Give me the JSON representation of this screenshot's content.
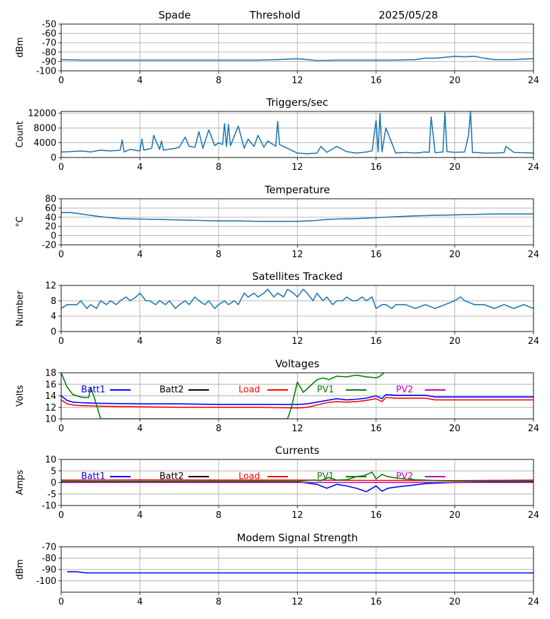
{
  "header": {
    "site": "Spade",
    "mode": "Threshold",
    "date": "2025/05/28"
  },
  "colors": {
    "default_series": "#1f77b4",
    "batt1": "#0000ff",
    "batt2": "#000000",
    "load": "#ff0000",
    "pv1": "#008000",
    "pv2": "#bf00bf",
    "grid": "#b0b0b0"
  },
  "x_ticks": [
    "0",
    "4",
    "8",
    "12",
    "16",
    "20",
    "24"
  ],
  "chart_data": [
    {
      "type": "line",
      "title": "",
      "ylabel": "dBm",
      "ylim": [
        -100,
        -50
      ],
      "yticks": [
        "-50",
        "-60",
        "-70",
        "-80",
        "-90",
        "-100"
      ],
      "xlim": [
        0,
        24
      ],
      "grid": true,
      "series": [
        {
          "color": "#1f77b4",
          "x": [
            0,
            1,
            2,
            3,
            4,
            5,
            6,
            7,
            8,
            9,
            10,
            11,
            12,
            12.5,
            13,
            14,
            15,
            16,
            17,
            18,
            18.5,
            19,
            19.5,
            20,
            20.5,
            21,
            21.5,
            22,
            23,
            24
          ],
          "y": [
            -88,
            -88.5,
            -88.5,
            -88.5,
            -88.5,
            -88.5,
            -88.5,
            -88.5,
            -88.5,
            -88.5,
            -88.5,
            -88,
            -87,
            -88,
            -89,
            -88.5,
            -88.5,
            -88.5,
            -88.5,
            -88,
            -86.5,
            -86.5,
            -85.5,
            -84.5,
            -85,
            -84.5,
            -86.5,
            -88,
            -88,
            -87
          ]
        }
      ]
    },
    {
      "type": "line",
      "title": "Triggers/sec",
      "ylabel": "Count",
      "ylim": [
        0,
        12500
      ],
      "yticks": [
        "0",
        "4000",
        "8000",
        "12000"
      ],
      "xlim": [
        0,
        24
      ],
      "grid": true,
      "series": [
        {
          "color": "#1f77b4",
          "x": [
            0,
            0.5,
            1,
            1.5,
            2,
            2.5,
            3,
            3.1,
            3.2,
            3.5,
            4,
            4.1,
            4.2,
            4.6,
            4.7,
            5,
            5.1,
            5.2,
            5.8,
            6,
            6.3,
            6.5,
            6.8,
            7,
            7.2,
            7.5,
            7.8,
            8,
            8.2,
            8.3,
            8.4,
            8.5,
            8.6,
            9,
            9.3,
            9.5,
            9.8,
            10,
            10.3,
            10.5,
            10.9,
            11,
            11.1,
            11.5,
            12,
            12.5,
            13,
            13.2,
            13.5,
            14,
            14.5,
            15,
            15.5,
            15.8,
            15.9,
            16,
            16.1,
            16.2,
            16.3,
            16.5,
            17,
            17.5,
            18,
            18.5,
            18.7,
            18.8,
            19,
            19.4,
            19.5,
            19.6,
            20,
            20.5,
            20.7,
            20.8,
            20.9,
            21,
            21.5,
            22,
            22.5,
            22.6,
            23,
            23.5,
            24
          ],
          "y": [
            1500,
            1600,
            1800,
            1500,
            2000,
            1800,
            2000,
            4800,
            1500,
            2200,
            1800,
            5000,
            2000,
            2500,
            6000,
            2200,
            4500,
            2000,
            2500,
            2800,
            5500,
            3000,
            2800,
            7000,
            2500,
            7500,
            3200,
            4000,
            3500,
            9200,
            3000,
            9000,
            3200,
            8500,
            2500,
            5000,
            3000,
            6000,
            2800,
            4500,
            3000,
            9800,
            3500,
            2500,
            1200,
            1000,
            1200,
            3000,
            1400,
            3000,
            1600,
            1200,
            1500,
            1800,
            6000,
            10000,
            1500,
            12000,
            1500,
            8000,
            1200,
            1400,
            1200,
            1500,
            1400,
            11000,
            1300,
            1500,
            12500,
            1600,
            1400,
            1500,
            6000,
            12500,
            1300,
            1400,
            1200,
            1200,
            1300,
            3000,
            1400,
            1300,
            1200
          ]
        }
      ]
    },
    {
      "type": "line",
      "title": "Temperature",
      "ylabel": "°C",
      "ylim": [
        -20,
        80
      ],
      "yticks": [
        "80",
        "60",
        "40",
        "20",
        "0",
        "-20"
      ],
      "xlim": [
        0,
        24
      ],
      "grid": true,
      "series": [
        {
          "color": "#1f77b4",
          "x": [
            0,
            0.5,
            1,
            1.5,
            2,
            2.5,
            3,
            4,
            5,
            6,
            7,
            8,
            9,
            10,
            11,
            12,
            12.5,
            13,
            13.5,
            14,
            15,
            16,
            17,
            18,
            19,
            20,
            21,
            22,
            23,
            24
          ],
          "y": [
            50,
            50,
            47,
            44,
            41,
            39,
            37,
            36,
            35,
            34,
            33,
            32,
            32,
            31,
            31,
            31,
            32,
            33,
            35,
            36,
            37,
            39,
            41,
            43,
            44,
            45,
            46,
            47,
            47,
            47
          ]
        }
      ]
    },
    {
      "type": "line",
      "title": "Satellites Tracked",
      "ylabel": "Number",
      "ylim": [
        0,
        12
      ],
      "yticks": [
        "0",
        "4",
        "8",
        "12"
      ],
      "xlim": [
        0,
        24
      ],
      "grid": true,
      "series": [
        {
          "color": "#1f77b4",
          "x": [
            0,
            0.3,
            0.8,
            1,
            1.3,
            1.5,
            1.8,
            2,
            2.3,
            2.5,
            2.8,
            3,
            3.3,
            3.5,
            3.8,
            4,
            4.3,
            4.5,
            4.8,
            5,
            5.3,
            5.5,
            5.8,
            6,
            6.3,
            6.5,
            6.8,
            7,
            7.3,
            7.5,
            7.8,
            8,
            8.3,
            8.5,
            8.8,
            9,
            9.3,
            9.5,
            9.8,
            10,
            10.3,
            10.5,
            10.8,
            11,
            11.3,
            11.5,
            11.8,
            12,
            12.3,
            12.5,
            12.8,
            13,
            13.3,
            13.5,
            13.8,
            14,
            14.3,
            14.5,
            14.8,
            15,
            15.3,
            15.5,
            15.8,
            16,
            16.3,
            16.5,
            16.8,
            17,
            17.5,
            18,
            18.5,
            19,
            19.5,
            20,
            20.3,
            20.5,
            21,
            21.5,
            22,
            22.5,
            23,
            23.5,
            24
          ],
          "y": [
            6,
            7,
            7,
            8,
            6,
            7,
            6,
            8,
            7,
            8,
            7,
            8,
            9,
            8,
            9,
            10,
            8,
            8,
            7,
            8,
            7,
            8,
            6,
            7,
            8,
            7,
            9,
            8,
            7,
            8,
            6,
            7,
            8,
            7,
            8,
            7,
            10,
            9,
            10,
            9,
            10,
            11,
            9,
            10,
            9,
            11,
            10,
            9,
            11,
            10,
            8,
            10,
            8,
            9,
            7,
            8,
            8,
            9,
            8,
            8,
            9,
            8,
            9,
            6,
            7,
            7,
            6,
            7,
            7,
            6,
            7,
            6,
            7,
            8,
            9,
            8,
            7,
            7,
            6,
            7,
            6,
            7,
            6
          ]
        }
      ]
    },
    {
      "type": "line",
      "title": "Voltages",
      "ylabel": "Volts",
      "ylim": [
        10,
        18
      ],
      "yticks": [
        "10",
        "12",
        "14",
        "16",
        "18"
      ],
      "xlim": [
        0,
        24
      ],
      "grid": true,
      "legend": [
        {
          "name": "Batt1",
          "color": "#0000ff"
        },
        {
          "name": "Batt2",
          "color": "#000000"
        },
        {
          "name": "Load",
          "color": "#ff0000"
        },
        {
          "name": "PV1",
          "color": "#008000"
        },
        {
          "name": "PV2",
          "color": "#bf00bf"
        }
      ],
      "series": [
        {
          "name": "Batt1",
          "color": "#0000ff",
          "x": [
            0,
            0.3,
            0.6,
            1,
            2,
            4,
            6,
            8,
            10,
            12,
            12.5,
            13,
            13.5,
            14,
            14.5,
            15,
            15.5,
            16,
            16.3,
            16.5,
            17,
            18,
            18.5,
            19,
            20,
            22,
            24
          ],
          "y": [
            14,
            13.2,
            12.9,
            12.8,
            12.7,
            12.6,
            12.6,
            12.5,
            12.5,
            12.5,
            12.6,
            12.9,
            13.2,
            13.5,
            13.3,
            13.4,
            13.6,
            14,
            13.5,
            14.2,
            14.1,
            14.1,
            14.1,
            13.8,
            13.8,
            13.8,
            13.8
          ]
        },
        {
          "name": "Load",
          "color": "#ff0000",
          "x": [
            0,
            0.3,
            0.6,
            1,
            2,
            4,
            6,
            8,
            10,
            12,
            12.5,
            13,
            13.5,
            14,
            14.5,
            15,
            15.5,
            16,
            16.3,
            16.5,
            17,
            18,
            18.5,
            19,
            20,
            22,
            24
          ],
          "y": [
            13.3,
            12.6,
            12.4,
            12.3,
            12.2,
            12.1,
            12,
            12,
            12,
            11.9,
            12,
            12.4,
            12.8,
            13,
            12.9,
            13,
            13.2,
            13.5,
            13,
            13.7,
            13.6,
            13.6,
            13.6,
            13.3,
            13.3,
            13.3,
            13.3
          ]
        },
        {
          "name": "PV1",
          "color": "#008000",
          "x": [
            0,
            0.3,
            0.6,
            1,
            1.2,
            1.4,
            1.5,
            1.7,
            2,
            11.5,
            11.7,
            12,
            12.3,
            13,
            13.3,
            13.6,
            14,
            14.5,
            15,
            15.5,
            15.8,
            16,
            16.2,
            16.4
          ],
          "y": [
            18,
            15.5,
            14.2,
            13.8,
            13.7,
            13.7,
            15.5,
            13.5,
            10,
            10,
            12,
            16.4,
            14.6,
            16.8,
            17.1,
            16.8,
            17.4,
            17.3,
            17.6,
            17.3,
            17.2,
            17.1,
            17.4,
            18
          ]
        }
      ]
    },
    {
      "type": "line",
      "title": "Currents",
      "ylabel": "Amps",
      "ylim": [
        -10,
        10
      ],
      "yticks": [
        "10",
        "5",
        "0",
        "-5",
        "-10"
      ],
      "xlim": [
        0,
        24
      ],
      "grid": true,
      "legend": [
        {
          "name": "Batt1",
          "color": "#0000ff"
        },
        {
          "name": "Batt2",
          "color": "#000000"
        },
        {
          "name": "Load",
          "color": "#ff0000"
        },
        {
          "name": "PV1",
          "color": "#008000"
        },
        {
          "name": "PV2",
          "color": "#bf00bf"
        }
      ],
      "series": [
        {
          "name": "Batt1",
          "color": "#0000ff",
          "x": [
            0,
            4,
            8,
            12,
            13,
            13.5,
            14,
            14.5,
            15,
            15.5,
            16,
            16.3,
            16.6,
            17,
            18,
            18.5,
            19,
            20,
            22,
            24
          ],
          "y": [
            0.3,
            0.3,
            0.3,
            0.3,
            -0.8,
            -2.5,
            -0.8,
            -1.5,
            -2.5,
            -4,
            -1.5,
            -3.8,
            -2.5,
            -2,
            -1,
            -0.5,
            -0.3,
            0,
            0.3,
            0.3
          ]
        },
        {
          "name": "Load",
          "color": "#ff0000",
          "x": [
            0,
            4,
            8,
            12,
            16,
            20,
            24
          ],
          "y": [
            1,
            1.1,
            1,
            1,
            0.9,
            0.8,
            1
          ]
        },
        {
          "name": "PV1",
          "color": "#008000",
          "x": [
            0,
            4,
            8,
            12,
            12.8,
            13.2,
            13.6,
            14,
            14.5,
            15,
            15.4,
            15.8,
            16,
            16.3,
            16.6,
            17,
            17.5,
            18,
            18.5,
            19,
            20,
            24
          ],
          "y": [
            0.5,
            0.5,
            0.5,
            0.5,
            1,
            0.8,
            2.2,
            1,
            1.2,
            2.5,
            3,
            4.5,
            1.5,
            3.5,
            2.5,
            2,
            1.5,
            1.2,
            1,
            0.8,
            0.6,
            0.6
          ]
        },
        {
          "name": "PV2",
          "color": "#bf00bf",
          "x": [
            0,
            4,
            8,
            12,
            16,
            20,
            24
          ],
          "y": [
            0,
            0,
            0,
            0,
            0,
            0,
            0
          ]
        }
      ]
    },
    {
      "type": "line",
      "title": "Modem Signal Strength",
      "ylabel": "dBm",
      "ylim": [
        -110,
        -70
      ],
      "yticks": [
        "-70",
        "-80",
        "-90",
        "-100"
      ],
      "xlim": [
        0,
        24
      ],
      "grid": true,
      "series": [
        {
          "color": "#0000ff",
          "x": [
            0.3,
            0.8,
            1,
            1.3,
            2,
            4,
            8,
            12,
            16,
            20,
            24
          ],
          "y": [
            -92,
            -92,
            -92.5,
            -93,
            -93,
            -93,
            -93,
            -93,
            -93,
            -93,
            -93
          ]
        }
      ]
    }
  ]
}
